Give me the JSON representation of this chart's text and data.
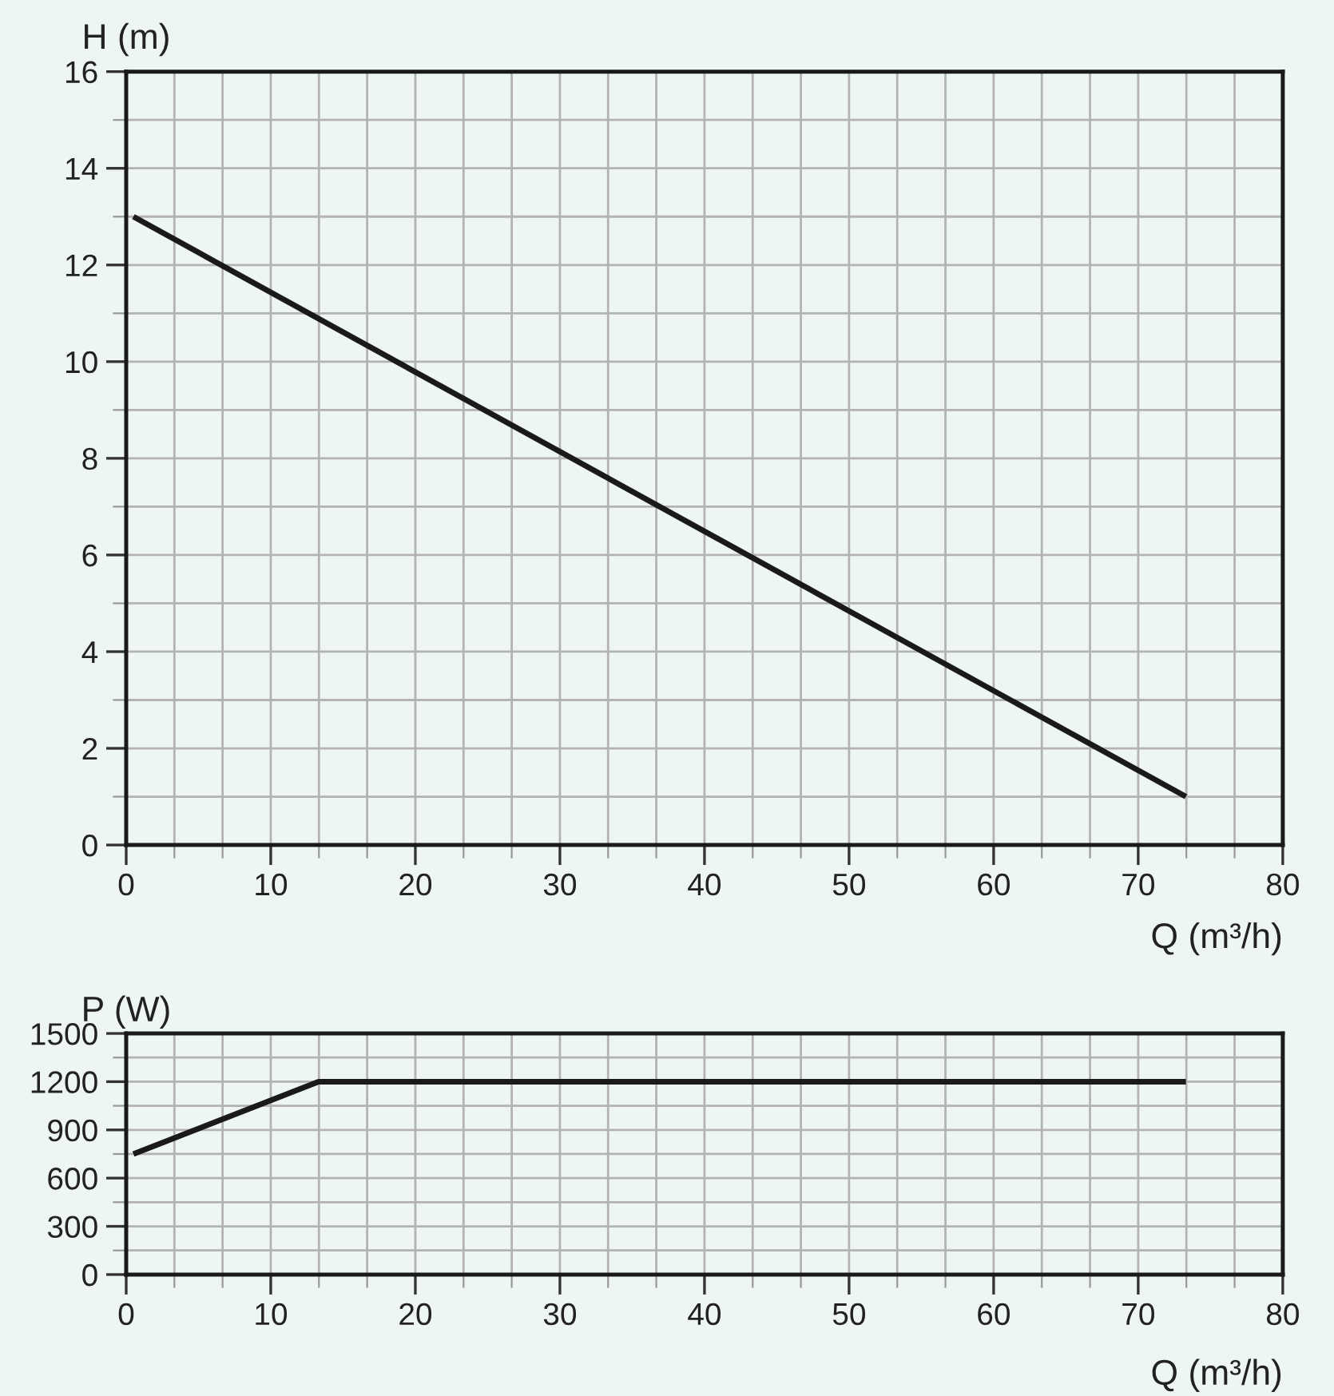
{
  "chart_data": [
    {
      "type": "line",
      "ylabel": "H (m)",
      "xlabel": "Q (m³/h)",
      "x": [
        0.5,
        73.3
      ],
      "series": [
        {
          "color": "#1a1a1a",
          "values": [
            13.0,
            1.0
          ]
        }
      ],
      "xlim": [
        0,
        80
      ],
      "ylim": [
        0,
        16
      ],
      "xticks": [
        0,
        {
          "value": 3.333,
          "label": null
        },
        {
          "value": 6.667,
          "label": null
        },
        10,
        {
          "value": 13.333,
          "label": null
        },
        {
          "value": 16.667,
          "label": null
        },
        20,
        {
          "value": 23.333,
          "label": null
        },
        {
          "value": 26.667,
          "label": null
        },
        30,
        {
          "value": 33.333,
          "label": null
        },
        {
          "value": 36.667,
          "label": null
        },
        40,
        {
          "value": 43.333,
          "label": null
        },
        {
          "value": 46.667,
          "label": null
        },
        50,
        {
          "value": 53.333,
          "label": null
        },
        {
          "value": 56.667,
          "label": null
        },
        60,
        {
          "value": 63.333,
          "label": null
        },
        {
          "value": 66.667,
          "label": null
        },
        70,
        {
          "value": 73.333,
          "label": null
        },
        {
          "value": 76.667,
          "label": null
        },
        80
      ],
      "yticks": [
        0,
        {
          "value": 1,
          "label": null
        },
        2,
        {
          "value": 3,
          "label": null
        },
        4,
        {
          "value": 5,
          "label": null
        },
        6,
        {
          "value": 7,
          "label": null
        },
        8,
        {
          "value": 9,
          "label": null
        },
        10,
        {
          "value": 11,
          "label": null
        },
        12,
        {
          "value": 13,
          "label": null
        },
        14,
        {
          "value": 15,
          "label": null
        },
        16
      ],
      "grid": true
    },
    {
      "type": "line",
      "ylabel": "P (W)",
      "xlabel": "Q (m³/h)",
      "x": [
        0.5,
        13.3,
        73.3
      ],
      "series": [
        {
          "color": "#1a1a1a",
          "values": [
            750,
            1200,
            1200
          ]
        }
      ],
      "xlim": [
        0,
        80
      ],
      "ylim": [
        0,
        1500
      ],
      "xticks": [
        0,
        {
          "value": 3.333,
          "label": null
        },
        {
          "value": 6.667,
          "label": null
        },
        10,
        {
          "value": 13.333,
          "label": null
        },
        {
          "value": 16.667,
          "label": null
        },
        20,
        {
          "value": 23.333,
          "label": null
        },
        {
          "value": 26.667,
          "label": null
        },
        30,
        {
          "value": 33.333,
          "label": null
        },
        {
          "value": 36.667,
          "label": null
        },
        40,
        {
          "value": 43.333,
          "label": null
        },
        {
          "value": 46.667,
          "label": null
        },
        50,
        {
          "value": 53.333,
          "label": null
        },
        {
          "value": 56.667,
          "label": null
        },
        60,
        {
          "value": 63.333,
          "label": null
        },
        {
          "value": 66.667,
          "label": null
        },
        70,
        {
          "value": 73.333,
          "label": null
        },
        {
          "value": 76.667,
          "label": null
        },
        80
      ],
      "yticks": [
        0,
        {
          "value": 150,
          "label": null
        },
        300,
        {
          "value": 450,
          "label": null
        },
        600,
        {
          "value": 750,
          "label": null
        },
        900,
        {
          "value": 1050,
          "label": null
        },
        1200,
        {
          "value": 1350,
          "label": null
        },
        1500
      ],
      "grid": true
    }
  ]
}
